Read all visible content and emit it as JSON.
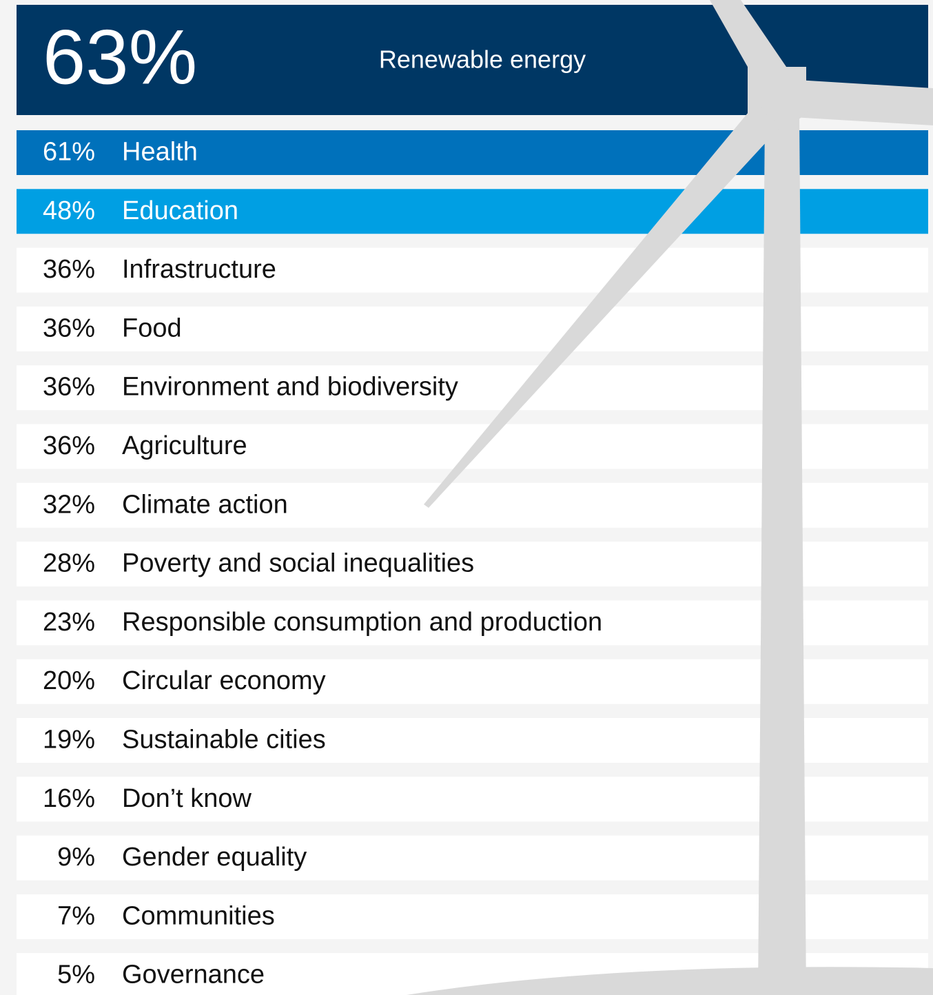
{
  "header": {
    "percent": "63%",
    "label": "Renewable energy"
  },
  "rows": [
    {
      "percent": "61%",
      "label": "Health"
    },
    {
      "percent": "48%",
      "label": "Education"
    },
    {
      "percent": "36%",
      "label": "Infrastructure"
    },
    {
      "percent": "36%",
      "label": "Food"
    },
    {
      "percent": "36%",
      "label": "Environment and biodiversity"
    },
    {
      "percent": "36%",
      "label": "Agriculture"
    },
    {
      "percent": "32%",
      "label": "Climate action"
    },
    {
      "percent": "28%",
      "label": "Poverty and social inequalities"
    },
    {
      "percent": "23%",
      "label": "Responsible consumption and production"
    },
    {
      "percent": "20%",
      "label": "Circular economy"
    },
    {
      "percent": "19%",
      "label": "Sustainable cities"
    },
    {
      "percent": "16%",
      "label": "Don’t know"
    },
    {
      "percent": "9%",
      "label": "Gender equality"
    },
    {
      "percent": "7%",
      "label": "Communities"
    },
    {
      "percent": "5%",
      "label": "Governance"
    }
  ]
}
